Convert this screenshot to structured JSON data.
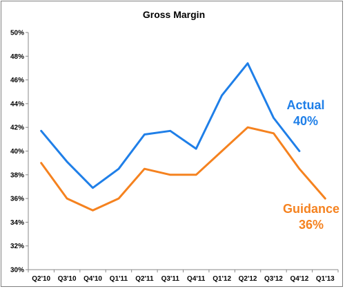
{
  "chart_data": {
    "type": "line",
    "title": "Gross Margin",
    "categories": [
      "Q2'10",
      "Q3'10",
      "Q4'10",
      "Q1'11",
      "Q2'11",
      "Q3'11",
      "Q4'11",
      "Q1'12",
      "Q2'12",
      "Q3'12",
      "Q4'12",
      "Q1'13"
    ],
    "ylim": [
      30,
      50
    ],
    "yticks": [
      30,
      32,
      34,
      36,
      38,
      40,
      42,
      44,
      46,
      48,
      50
    ],
    "ytick_labels": [
      "30%",
      "32%",
      "34%",
      "36%",
      "38%",
      "40%",
      "42%",
      "44%",
      "46%",
      "48%",
      "50%"
    ],
    "grid": false,
    "legend": "none",
    "series": [
      {
        "name": "Actual",
        "color": "#1f7fe8",
        "values": [
          41.7,
          39.1,
          36.9,
          38.5,
          41.4,
          41.7,
          40.2,
          44.7,
          47.4,
          42.8,
          40.0,
          null
        ],
        "label_lines": [
          "Actual",
          "40%"
        ]
      },
      {
        "name": "Guidance",
        "color": "#f5821f",
        "values": [
          39.0,
          36.0,
          35.0,
          36.0,
          38.5,
          38.0,
          38.0,
          40.0,
          42.0,
          41.5,
          38.5,
          36.0
        ],
        "label_lines": [
          "Guidance",
          "36%"
        ]
      }
    ]
  }
}
